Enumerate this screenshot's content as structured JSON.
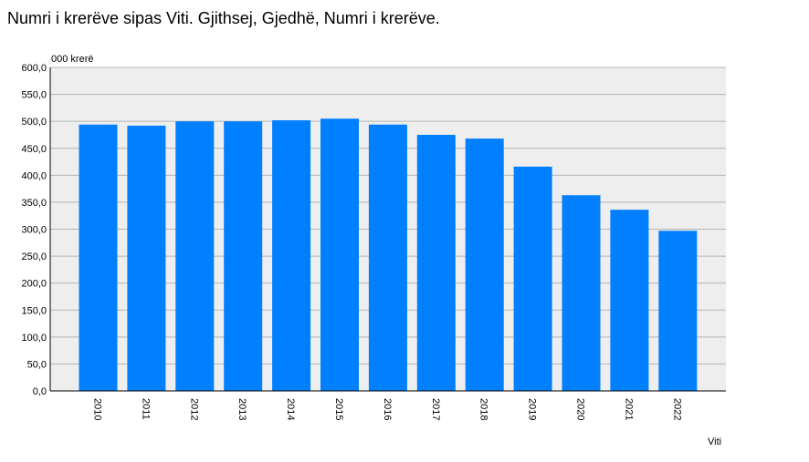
{
  "chart_data": {
    "type": "bar",
    "title": "Numri i krerëve sipas Viti. Gjithsej, Gjedhë, Numri i krerëve.",
    "y_label": "000 krerë",
    "x_label": "Viti",
    "categories": [
      "2010",
      "2011",
      "2012",
      "2013",
      "2014",
      "2015",
      "2016",
      "2017",
      "2018",
      "2019",
      "2020",
      "2021",
      "2022"
    ],
    "values": [
      494,
      492,
      500,
      500,
      502,
      505,
      494,
      475,
      468,
      416,
      363,
      336,
      297
    ],
    "color": "#0080ff",
    "ylim": [
      0,
      600
    ],
    "yticks": [
      {
        "value": 0,
        "label": "0,0"
      },
      {
        "value": 50,
        "label": "50,0"
      },
      {
        "value": 100,
        "label": "100,0"
      },
      {
        "value": 150,
        "label": "150,0"
      },
      {
        "value": 200,
        "label": "200,0"
      },
      {
        "value": 250,
        "label": "250,0"
      },
      {
        "value": 300,
        "label": "300,0"
      },
      {
        "value": 350,
        "label": "350,0"
      },
      {
        "value": 400,
        "label": "400,0"
      },
      {
        "value": 450,
        "label": "450,0"
      },
      {
        "value": 500,
        "label": "500,0"
      },
      {
        "value": 550,
        "label": "550,0"
      },
      {
        "value": 600,
        "label": "600,0"
      }
    ],
    "grid": true
  }
}
